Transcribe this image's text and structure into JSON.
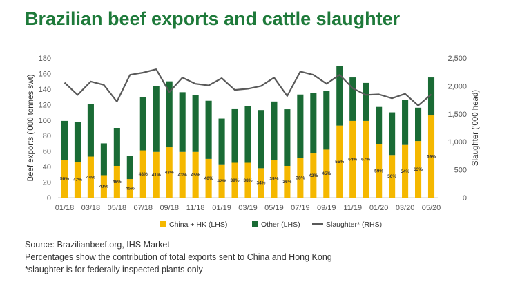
{
  "title": "Brazilian beef exports and cattle slaughter",
  "notes": {
    "source": "Source: Brazilianbeef.org, IHS Market",
    "percentages": "Percentages show the contribution of total exports sent to China and Hong Kong",
    "slaughter": "*slaughter is for federally inspected plants only"
  },
  "colors": {
    "china": "#f5b800",
    "other": "#1a6b35",
    "slaughter": "#595959",
    "title": "#1e7a3a"
  },
  "chart_data": {
    "type": "bar",
    "stacked": true,
    "categories": [
      "01/18",
      "02/18",
      "03/18",
      "04/18",
      "05/18",
      "06/18",
      "07/18",
      "08/18",
      "09/18",
      "10/18",
      "11/18",
      "12/18",
      "01/19",
      "02/19",
      "03/19",
      "04/19",
      "05/19",
      "06/19",
      "07/19",
      "08/19",
      "09/19",
      "10/19",
      "11/19",
      "12/19",
      "01/20",
      "02/20",
      "03/20",
      "04/20",
      "05/20"
    ],
    "x_tick_labels": [
      "01/18",
      "03/18",
      "05/18",
      "07/18",
      "09/18",
      "11/18",
      "01/19",
      "03/19",
      "05/19",
      "07/19",
      "09/19",
      "11/19",
      "01/20",
      "03/20",
      "05/20"
    ],
    "series": [
      {
        "name": "China + HK (LHS)",
        "axis": "left",
        "values": [
          49,
          46,
          53,
          29,
          41,
          24,
          61,
          59,
          65,
          59,
          59,
          50,
          43,
          45,
          45,
          38,
          49,
          41,
          51,
          57,
          62,
          93,
          99,
          99,
          69,
          55,
          68,
          73,
          106
        ]
      },
      {
        "name": "Other (LHS)",
        "axis": "left",
        "values": [
          50,
          52,
          68,
          41,
          49,
          30,
          69,
          85,
          85,
          77,
          73,
          75,
          59,
          70,
          73,
          75,
          75,
          73,
          82,
          78,
          76,
          77,
          56,
          49,
          48,
          55,
          58,
          43,
          49
        ]
      },
      {
        "name": "Slaughter* (RHS)",
        "axis": "right",
        "type": "line",
        "values": [
          2060,
          1840,
          2080,
          2020,
          1720,
          2200,
          2240,
          2300,
          1890,
          2150,
          2040,
          2010,
          2140,
          1930,
          1950,
          2000,
          2150,
          1820,
          2260,
          2200,
          2040,
          2200,
          1960,
          1840,
          1850,
          1780,
          1860,
          1650,
          1850
        ]
      }
    ],
    "percent_labels": [
      "50%",
      "47%",
      "44%",
      "41%",
      "46%",
      "45%",
      "48%",
      "41%",
      "43%",
      "43%",
      "45%",
      "40%",
      "42%",
      "39%",
      "38%",
      "34%",
      "39%",
      "36%",
      "38%",
      "42%",
      "45%",
      "55%",
      "64%",
      "67%",
      "59%",
      "50%",
      "54%",
      "63%",
      "69%"
    ],
    "ylabel": "Beef exports ('000 tonnes swt)",
    "y2label": "Slaughter ('000 head)",
    "ylim": [
      0,
      180
    ],
    "yticks": [
      "0",
      "20",
      "40",
      "60",
      "80",
      "100",
      "120",
      "140",
      "160",
      "180"
    ],
    "y2lim": [
      0,
      2500
    ],
    "y2ticks": [
      "0",
      "500",
      "1,000",
      "1,500",
      "2,000",
      "2,500"
    ],
    "grid": false,
    "legend_position": "bottom"
  }
}
